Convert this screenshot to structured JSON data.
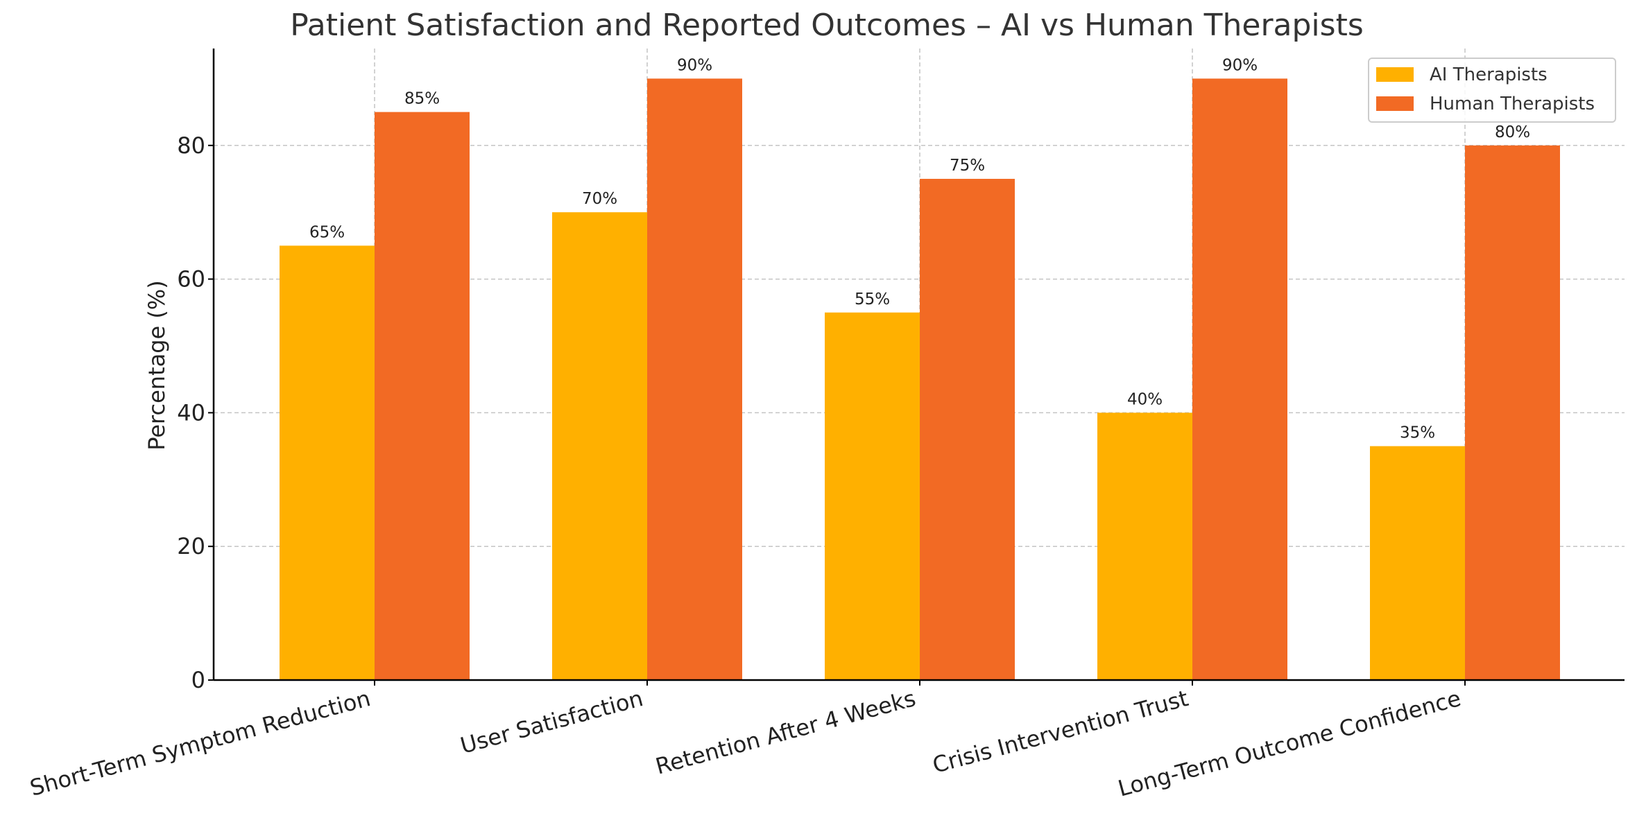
{
  "chart_data": {
    "type": "bar",
    "title": "Patient Satisfaction and Reported Outcomes – AI vs Human Therapists",
    "xlabel": "",
    "ylabel": "Percentage (%)",
    "categories": [
      "Short-Term Symptom Reduction",
      "User Satisfaction",
      "Retention After 4 Weeks",
      "Crisis Intervention Trust",
      "Long-Term Outcome Confidence"
    ],
    "series": [
      {
        "name": "AI Therapists",
        "color": "#FFB000",
        "values": [
          65,
          70,
          55,
          40,
          35
        ],
        "labels": [
          "65%",
          "70%",
          "55%",
          "40%",
          "35%"
        ]
      },
      {
        "name": "Human Therapists",
        "color": "#F26A24",
        "values": [
          85,
          90,
          75,
          90,
          80
        ],
        "labels": [
          "85%",
          "90%",
          "75%",
          "90%",
          "80%"
        ]
      }
    ],
    "ylim": [
      0,
      94.5
    ],
    "yticks": [
      0,
      20,
      40,
      60,
      80
    ],
    "grid": true,
    "legend_position": "top-right"
  }
}
